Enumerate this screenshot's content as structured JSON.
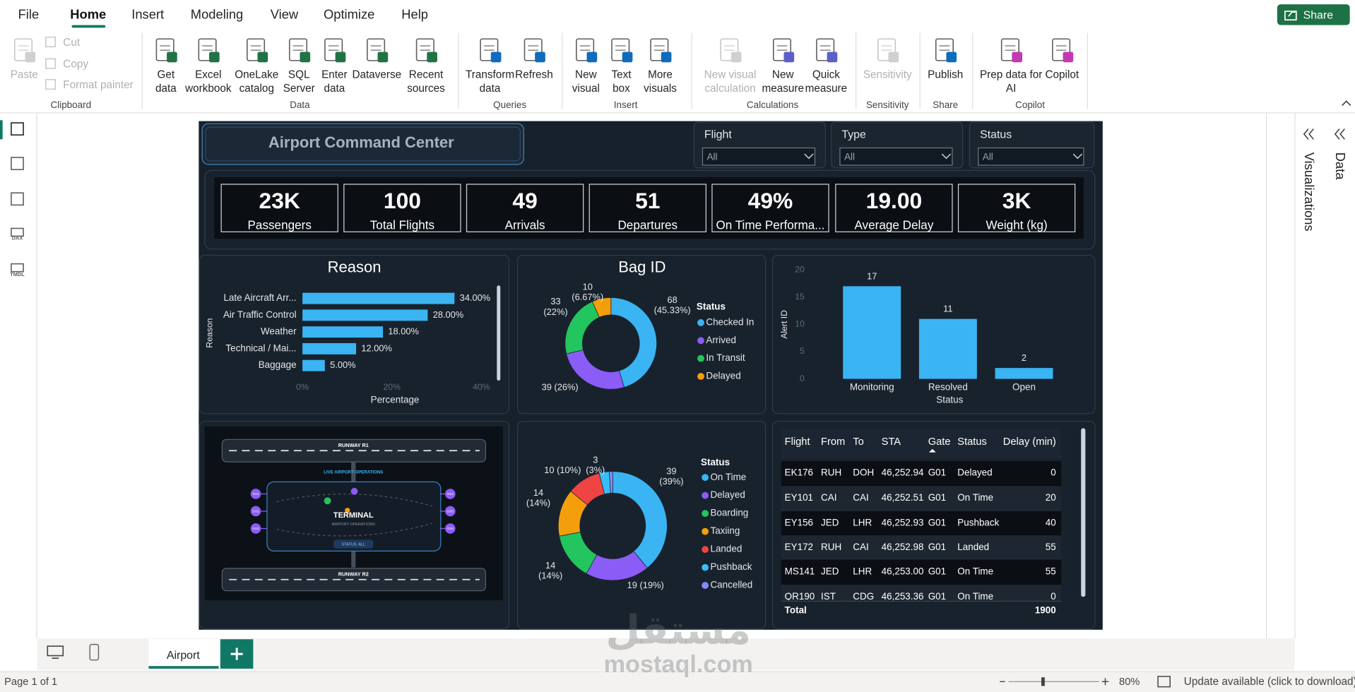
{
  "menu": [
    "File",
    "Home",
    "Insert",
    "Modeling",
    "View",
    "Optimize",
    "Help"
  ],
  "share_button": "Share",
  "ribbon": {
    "groups": [
      {
        "name": "Clipboard",
        "buttons": [
          {
            "label": "Paste",
            "disabled": true
          },
          {
            "label": "Cut",
            "disabled": true
          },
          {
            "label": "Copy",
            "disabled": true
          },
          {
            "label": "Format painter",
            "disabled": true
          }
        ]
      },
      {
        "name": "Data",
        "buttons": [
          {
            "label": "Get data"
          },
          {
            "label": "Excel workbook"
          },
          {
            "label": "OneLake catalog"
          },
          {
            "label": "SQL Server"
          },
          {
            "label": "Enter data"
          },
          {
            "label": "Dataverse"
          },
          {
            "label": "Recent sources"
          }
        ]
      },
      {
        "name": "Queries",
        "buttons": [
          {
            "label": "Transform data"
          },
          {
            "label": "Refresh"
          }
        ]
      },
      {
        "name": "Insert",
        "buttons": [
          {
            "label": "New visual"
          },
          {
            "label": "Text box"
          },
          {
            "label": "More visuals"
          }
        ]
      },
      {
        "name": "Calculations",
        "buttons": [
          {
            "label": "New visual calculation",
            "disabled": true
          },
          {
            "label": "New measure"
          },
          {
            "label": "Quick measure"
          }
        ]
      },
      {
        "name": "Sensitivity",
        "buttons": [
          {
            "label": "Sensitivity",
            "disabled": true
          }
        ]
      },
      {
        "name": "Share",
        "buttons": [
          {
            "label": "Publish"
          }
        ]
      },
      {
        "name": "Copilot",
        "buttons": [
          {
            "label": "Prep data for AI"
          },
          {
            "label": "Copilot"
          }
        ]
      }
    ]
  },
  "left_nav": [
    "DAX",
    "TMDL"
  ],
  "report": {
    "title": "Airport Command Center",
    "slicers": [
      {
        "label": "Flight",
        "value": "All"
      },
      {
        "label": "Type",
        "value": "All"
      },
      {
        "label": "Status",
        "value": "All"
      }
    ],
    "kpis": [
      {
        "value": "23K",
        "label": "Passengers"
      },
      {
        "value": "100",
        "label": "Total Flights"
      },
      {
        "value": "49",
        "label": "Arrivals"
      },
      {
        "value": "51",
        "label": "Departures"
      },
      {
        "value": "49%",
        "label": "On Time Performa..."
      },
      {
        "value": "19.00",
        "label": "Average Delay"
      },
      {
        "value": "3K",
        "label": "Weight (kg)"
      }
    ],
    "map": {
      "runway_1": "RUNWAY R1",
      "banner": "LIVE AIRPORT OPERATIONS",
      "terminal": "TERMINAL",
      "terminal_sub": "AIRPORT OPERATIONS",
      "status": "STATUS: ALL",
      "runway_2": "RUNWAY R2",
      "gates": [
        "G01",
        "G02",
        "G03",
        "G04",
        "G05",
        "G06"
      ]
    },
    "table": {
      "columns": [
        "Flight",
        "From",
        "To",
        "STA",
        "Gate",
        "Status",
        "Delay (min)"
      ],
      "rows": [
        [
          "EK176",
          "RUH",
          "DOH",
          "46,252.94",
          "G01",
          "Delayed",
          0
        ],
        [
          "EY101",
          "CAI",
          "CAI",
          "46,252.51",
          "G01",
          "On Time",
          20
        ],
        [
          "EY156",
          "JED",
          "LHR",
          "46,252.93",
          "G01",
          "Pushback",
          40
        ],
        [
          "EY172",
          "RUH",
          "CAI",
          "46,252.98",
          "G01",
          "Landed",
          55
        ],
        [
          "MS141",
          "JED",
          "LHR",
          "46,253.00",
          "G01",
          "On Time",
          55
        ],
        [
          "QR190",
          "IST",
          "CDG",
          "46,253.36",
          "G01",
          "On Time",
          0
        ]
      ],
      "total_label": "Total",
      "total": 1900
    }
  },
  "charts": [
    {
      "type": "bar",
      "title": "Reason",
      "y_label": "Reason",
      "x_label": "Percentage",
      "categories": [
        "Late Aircraft Arr...",
        "Air Traffic Control",
        "Weather",
        "Technical / Mai...",
        "Baggage"
      ],
      "values": [
        34,
        28,
        18,
        12,
        5
      ],
      "value_labels": [
        "34.00%",
        "28.00%",
        "18.00%",
        "12.00%",
        "5.00%"
      ],
      "color": "#3ab4f2",
      "xlim": [
        0,
        40
      ],
      "xticks": [
        {
          "value": 0,
          "label": "0%"
        },
        {
          "value": 20,
          "label": "20%"
        },
        {
          "value": 40,
          "label": "40%"
        }
      ]
    },
    {
      "type": "donut",
      "title": "Bag ID",
      "legend_title": "Status",
      "categories": [
        "Checked In",
        "Arrived",
        "In Transit",
        "Delayed"
      ],
      "values": [
        68,
        39,
        33,
        10
      ],
      "value_labels": [
        "68 (45.33%)",
        "39 (26%)",
        "33 (22%)",
        "10 (6.67%)"
      ],
      "colors": [
        "#3ab4f2",
        "#8b5cf6",
        "#22c55e",
        "#f59e0b"
      ]
    },
    {
      "type": "column",
      "y_label": "Alert ID",
      "x_label": "Status",
      "categories": [
        "Monitoring",
        "Resolved",
        "Open"
      ],
      "values": [
        17,
        11,
        2
      ],
      "color": "#3ab4f2",
      "ylim": [
        0,
        20
      ],
      "yticks": [
        0,
        5,
        10,
        15,
        20
      ]
    },
    {
      "type": "donut",
      "legend_title": "Status",
      "categories": [
        "On Time",
        "Delayed",
        "Boarding",
        "Taxiing",
        "Landed",
        "Pushback",
        "Cancelled"
      ],
      "values": [
        39,
        19,
        14,
        14,
        10,
        3,
        1
      ],
      "value_labels": [
        "39 (39%)",
        "19 (19%)",
        "14 (14%)",
        "14 (14%)",
        "10 (10%)",
        "3 (3%)",
        null
      ],
      "colors": [
        "#3ab4f2",
        "#8b5cf6",
        "#22c55e",
        "#f59e0b",
        "#ef4444",
        "#38bdf8",
        "#818cf8"
      ]
    }
  ],
  "right_panes": [
    "Visualizations",
    "Data"
  ],
  "page_tabs": [
    "Airport"
  ],
  "status_bar": {
    "page": "Page 1 of 1",
    "zoom": "80%",
    "update": "Update available (click to download)"
  },
  "watermark": {
    "arabic": "مستقل",
    "latin": "mostaql.com"
  }
}
